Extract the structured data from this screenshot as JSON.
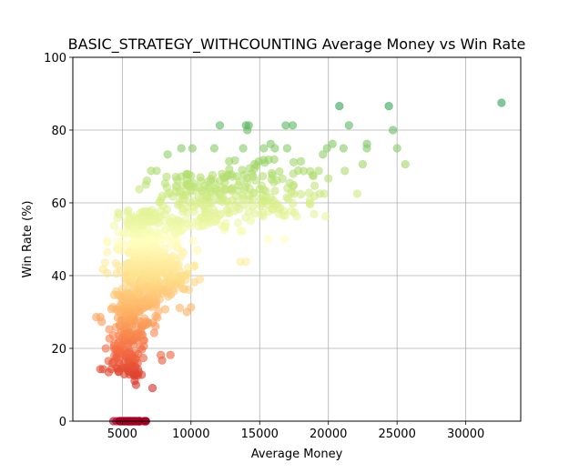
{
  "chart_data": {
    "type": "scatter",
    "title": "BASIC_STRATEGY_WITHCOUNTING Average Money vs Win Rate",
    "xlabel": "Average Money",
    "ylabel": "Win Rate (%)",
    "xlim": [
      1400,
      34000
    ],
    "ylim": [
      0,
      100
    ],
    "xticks": [
      5000,
      10000,
      15000,
      20000,
      25000,
      30000
    ],
    "xtick_labels": [
      "5000",
      "10000",
      "15000",
      "20000",
      "25000",
      "30000"
    ],
    "yticks": [
      0,
      20,
      40,
      60,
      80,
      100
    ],
    "ytick_labels": [
      "0",
      "20",
      "40",
      "60",
      "80",
      "100"
    ],
    "grid": true,
    "marker_alpha": 0.6,
    "colormap": "RdYlGn (colored by win rate)",
    "colormap_stops": [
      "#a50026",
      "#d73027",
      "#f46d43",
      "#fdae61",
      "#fee08b",
      "#ffffbf",
      "#d9ef8b",
      "#a6d96a",
      "#66bd63",
      "#1a9850",
      "#006837"
    ],
    "points": [
      {
        "x": 32600,
        "y": 87.5
      },
      {
        "x": 24400,
        "y": 86.6
      },
      {
        "x": 20800,
        "y": 86.6
      },
      {
        "x": 14000,
        "y": 81.3
      },
      {
        "x": 14200,
        "y": 81.3
      },
      {
        "x": 12100,
        "y": 81.3
      },
      {
        "x": 16900,
        "y": 81.3
      },
      {
        "x": 17400,
        "y": 81.3
      },
      {
        "x": 21500,
        "y": 81.3
      },
      {
        "x": 24700,
        "y": 80.0
      },
      {
        "x": 14100,
        "y": 80.0
      },
      {
        "x": 9300,
        "y": 75.0
      },
      {
        "x": 10100,
        "y": 75.0
      },
      {
        "x": 11700,
        "y": 75.0
      },
      {
        "x": 13800,
        "y": 75.0
      },
      {
        "x": 15300,
        "y": 75.0
      },
      {
        "x": 16100,
        "y": 75.0
      },
      {
        "x": 17000,
        "y": 75.0
      },
      {
        "x": 19900,
        "y": 75.0
      },
      {
        "x": 21100,
        "y": 75.0
      },
      {
        "x": 22800,
        "y": 75.0
      },
      {
        "x": 25000,
        "y": 75.0
      },
      {
        "x": 15800,
        "y": 76.2
      },
      {
        "x": 20300,
        "y": 76.2
      },
      {
        "x": 22800,
        "y": 76.2
      },
      {
        "x": 8300,
        "y": 73.3
      },
      {
        "x": 19600,
        "y": 73.3
      },
      {
        "x": 18000,
        "y": 71.4
      },
      {
        "x": 25600,
        "y": 70.6
      },
      {
        "x": 22500,
        "y": 70.6
      },
      {
        "x": 21200,
        "y": 68.8
      },
      {
        "x": 7100,
        "y": 68.8
      },
      {
        "x": 7500,
        "y": 68.8
      },
      {
        "x": 19300,
        "y": 68.8
      },
      {
        "x": 19700,
        "y": 62.5
      },
      {
        "x": 22100,
        "y": 62.5
      },
      {
        "x": 20000,
        "y": 66.7
      },
      {
        "x": 19000,
        "y": 64.7
      },
      {
        "x": 17500,
        "y": 62.5
      },
      {
        "x": 15600,
        "y": 50.0
      },
      {
        "x": 16800,
        "y": 50.0
      },
      {
        "x": 19800,
        "y": 56.3
      },
      {
        "x": 17700,
        "y": 56.3
      },
      {
        "x": 14000,
        "y": 43.8
      },
      {
        "x": 13600,
        "y": 43.8
      },
      {
        "x": 10000,
        "y": 31.3
      },
      {
        "x": 9700,
        "y": 30.0
      },
      {
        "x": 7800,
        "y": 18.2
      },
      {
        "x": 8500,
        "y": 18.2
      },
      {
        "x": 7900,
        "y": 16.7
      },
      {
        "x": 7200,
        "y": 9.1
      },
      {
        "x": 3600,
        "y": 41.7
      },
      {
        "x": 3100,
        "y": 28.6
      },
      {
        "x": 3400,
        "y": 28.6
      },
      {
        "x": 3500,
        "y": 27.3
      },
      {
        "x": 3800,
        "y": 20.0
      },
      {
        "x": 3400,
        "y": 14.3
      },
      {
        "x": 3600,
        "y": 14.3
      },
      {
        "x": 4200,
        "y": 14.3
      },
      {
        "x": 6000,
        "y": 10.0
      },
      {
        "x": 5900,
        "y": 11.1
      }
    ],
    "clusters": [
      {
        "x_mean": 6400,
        "x_sd": 700,
        "y_min": 40,
        "y_max": 58,
        "count": 170
      },
      {
        "x_mean": 7400,
        "x_sd": 1400,
        "y_min": 36,
        "y_max": 56,
        "count": 210
      },
      {
        "x_mean": 10800,
        "x_sd": 1900,
        "y_min": 52,
        "y_max": 68,
        "count": 170
      },
      {
        "x_mean": 15200,
        "x_sd": 2200,
        "y_min": 56,
        "y_max": 72,
        "count": 110
      },
      {
        "x_mean": 7000,
        "x_sd": 1300,
        "y_min": 30,
        "y_max": 44,
        "count": 140
      },
      {
        "x_mean": 5800,
        "x_sd": 700,
        "y_min": 22,
        "y_max": 36,
        "count": 130
      },
      {
        "x_mean": 5500,
        "x_sd": 600,
        "y_min": 12,
        "y_max": 24,
        "count": 100
      },
      {
        "x_mean": 5600,
        "x_sd": 500,
        "y_min": 0,
        "y_max": 0,
        "count": 60
      }
    ]
  }
}
